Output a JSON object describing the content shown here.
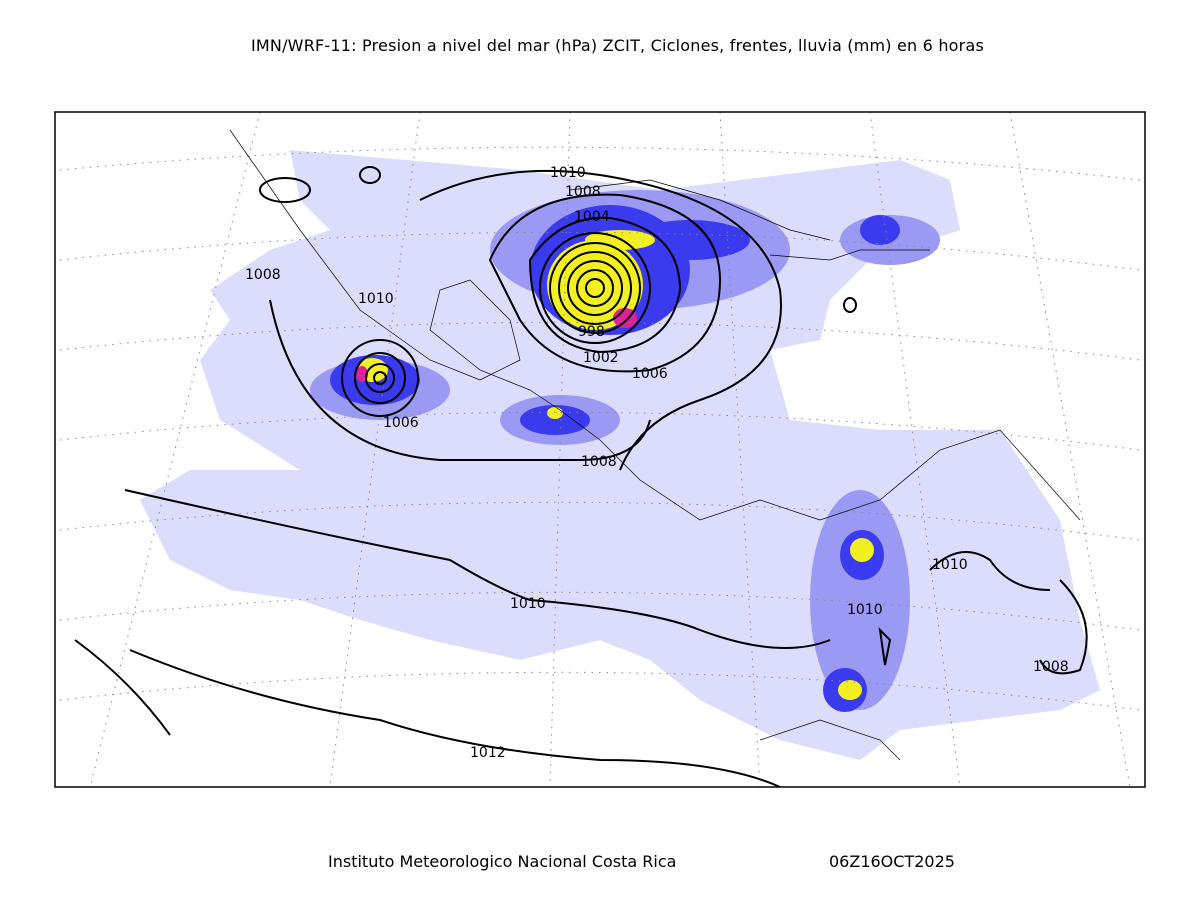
{
  "header": {
    "title": "IMN/WRF-11: Presion a nivel del mar (hPa) ZCIT, Ciclones, frentes, lluvia (mm) en 6 horas"
  },
  "footer": {
    "institution": "Instituto Meteorologico Nacional Costa Rica",
    "datetime": "06Z16OCT2025"
  },
  "colors": {
    "rain_light": "#dcdcfc",
    "rain_mid": "#9a9af4",
    "rain_blue": "#3a3aee",
    "rain_dark": "#1818c8",
    "rain_yellow": "#f2f020",
    "rain_magenta": "#e0209a",
    "contour": "#000000"
  },
  "contour_labels": [
    "1010",
    "1008",
    "1004",
    "998",
    "1002",
    "1006",
    "1008",
    "1010",
    "1006",
    "1008",
    "1010",
    "1010",
    "1010",
    "1008",
    "1012"
  ]
}
